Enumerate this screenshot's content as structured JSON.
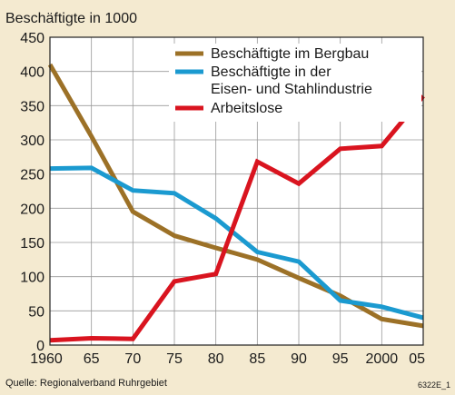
{
  "chart_data": {
    "type": "line",
    "title": "Beschäftigte in 1000",
    "source": "Quelle: Regionalverband Ruhrgebiet",
    "code": "6322E_1",
    "xlabel": "",
    "ylabel": "",
    "x": [
      1960,
      1965,
      1970,
      1975,
      1980,
      1985,
      1990,
      1995,
      2000,
      2005
    ],
    "x_tick_labels": [
      "1960",
      "65",
      "70",
      "75",
      "80",
      "85",
      "90",
      "95",
      "2000",
      "05"
    ],
    "xlim": [
      1960,
      2005
    ],
    "ylim": [
      0,
      450
    ],
    "y_ticks": [
      0,
      50,
      100,
      150,
      200,
      250,
      300,
      350,
      400,
      450
    ],
    "grid": true,
    "legend_position": "top-right",
    "series": [
      {
        "name": "Beschäftigte im Bergbau",
        "color": "#9c7127",
        "values": [
          410,
          305,
          195,
          160,
          142,
          125,
          98,
          72,
          38,
          28
        ]
      },
      {
        "name": "Beschäftigte in der Eisen- und Stahlindustrie",
        "legend_lines": [
          "Beschäftigte in der",
          "Eisen- und Stahlindustrie"
        ],
        "color": "#1b9ad0",
        "values": [
          258,
          259,
          226,
          222,
          185,
          136,
          122,
          65,
          56,
          40
        ]
      },
      {
        "name": "Arbeitslose",
        "color": "#d9141f",
        "values": [
          7,
          10,
          9,
          93,
          104,
          268,
          236,
          287,
          291,
          364
        ]
      }
    ]
  }
}
